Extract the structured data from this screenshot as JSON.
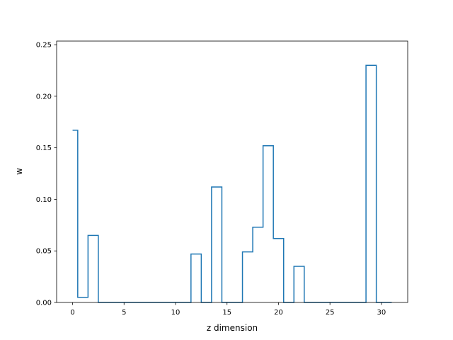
{
  "chart_data": {
    "type": "line",
    "step": "post",
    "title": "",
    "xlabel": "z dimension",
    "ylabel": "w",
    "xlim": [
      -1.55,
      32.55
    ],
    "ylim": [
      0.0,
      0.2535
    ],
    "xticks": [
      0,
      5,
      10,
      15,
      20,
      25,
      30
    ],
    "xtick_labels": [
      "0",
      "5",
      "10",
      "15",
      "20",
      "25",
      "30"
    ],
    "yticks": [
      0.0,
      0.05,
      0.1,
      0.15,
      0.2,
      0.25
    ],
    "ytick_labels": [
      "0.00",
      "0.05",
      "0.10",
      "0.15",
      "0.20",
      "0.25"
    ],
    "grid": false,
    "legend": null,
    "line_color": "#1f77b4",
    "series": [
      {
        "x": [
          0,
          0.5,
          1.5,
          2.5,
          3.5,
          4.5,
          5.5,
          6.5,
          7.5,
          8.5,
          9.5,
          10.5,
          11.5,
          12.5,
          13.5,
          14.5,
          15.5,
          16.5,
          17.5,
          18.5,
          19.5,
          20.5,
          21.5,
          22.5,
          23.5,
          24.5,
          25.5,
          26.5,
          27.5,
          28.5,
          29.5,
          30.5,
          31
        ],
        "y": [
          0.167,
          0.005,
          0.065,
          0,
          0,
          0,
          0,
          0,
          0,
          0,
          0,
          0,
          0.047,
          0,
          0.112,
          0,
          0,
          0.049,
          0.073,
          0.152,
          0.062,
          0,
          0.035,
          0,
          0,
          0,
          0,
          0,
          0,
          0.23,
          0,
          0,
          0
        ]
      }
    ]
  }
}
